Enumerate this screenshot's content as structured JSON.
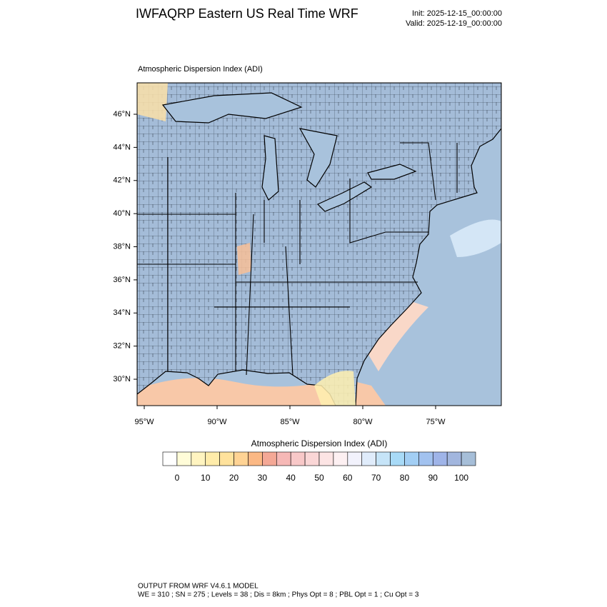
{
  "header": {
    "title": "IWFAQRP Eastern US Real Time WRF",
    "init": "Init: 2025-12-15_00:00:00",
    "valid": "Valid: 2025-12-19_00:00:00"
  },
  "map": {
    "title": "Atmospheric Dispersion Index   (ADI)",
    "lat_ticks": [
      {
        "value": 46,
        "label": "46°N"
      },
      {
        "value": 44,
        "label": "44°N"
      },
      {
        "value": 42,
        "label": "42°N"
      },
      {
        "value": 40,
        "label": "40°N"
      },
      {
        "value": 38,
        "label": "38°N"
      },
      {
        "value": 36,
        "label": "36°N"
      },
      {
        "value": 34,
        "label": "34°N"
      },
      {
        "value": 32,
        "label": "32°N"
      },
      {
        "value": 30,
        "label": "30°N"
      }
    ],
    "lon_ticks": [
      {
        "value": -95,
        "label": "95°W"
      },
      {
        "value": -90,
        "label": "90°W"
      },
      {
        "value": -85,
        "label": "85°W"
      },
      {
        "value": -80,
        "label": "80°W"
      },
      {
        "value": -75,
        "label": "75°W"
      }
    ]
  },
  "colorbar": {
    "title": "Atmospheric Dispersion Index  (ADI)",
    "colors": [
      "#ffffff",
      "#fffcd8",
      "#fff4c0",
      "#ffecaa",
      "#ffe29c",
      "#ffd394",
      "#fbb884",
      "#f4a896",
      "#f6b8b6",
      "#f8c8c8",
      "#fad6d6",
      "#fce4e4",
      "#fdf0f2",
      "#f2f2fc",
      "#e0ecfb",
      "#c6e4f8",
      "#a8daf7",
      "#a2cef4",
      "#a2c2ef",
      "#9fb4e8",
      "#a2b6de",
      "#a6bed8"
    ],
    "ticks": [
      0,
      10,
      20,
      30,
      40,
      50,
      60,
      70,
      80,
      90,
      100
    ]
  },
  "footer": {
    "line1": "OUTPUT FROM WRF V4.6.1 MODEL",
    "line2": "WE = 310 ; SN = 275 ; Levels = 38 ; Dis = 8km ; Phys Opt = 8 ; PBL Opt = 1 ; Cu Opt = 3"
  }
}
